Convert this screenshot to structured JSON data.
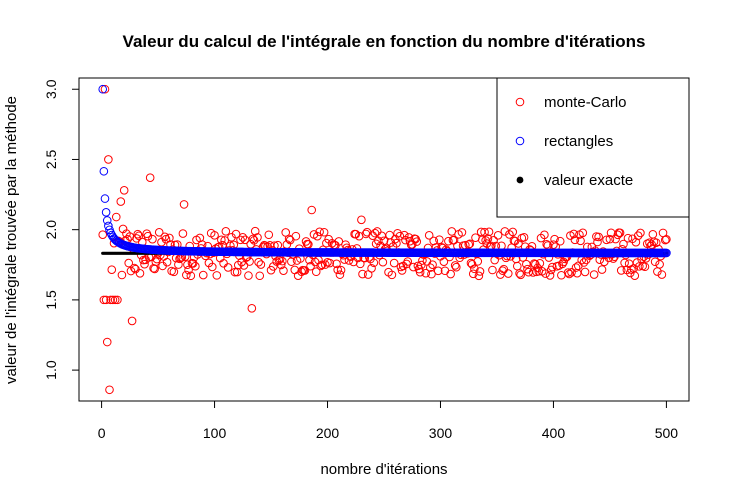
{
  "chart_data": {
    "type": "scatter",
    "title": "Valeur du calcul de l'intégrale en fonction du nombre d'itérations",
    "xlabel": "nombre d'itérations",
    "ylabel": "valeur de l'intégrale trouvée par la méthode",
    "xlim": [
      -20,
      520
    ],
    "ylim": [
      0.78,
      3.08
    ],
    "xticks": [
      0,
      100,
      200,
      300,
      400,
      500
    ],
    "yticks": [
      1.0,
      1.5,
      2.0,
      2.5,
      3.0
    ],
    "xtick_labels": [
      "0",
      "100",
      "200",
      "300",
      "400",
      "500"
    ],
    "ytick_labels": [
      "1.0",
      "1.5",
      "2.0",
      "2.5",
      "3.0"
    ],
    "grid": false,
    "legend_position": "top-right",
    "series": [
      {
        "name": "monte-Carlo",
        "marker": "open-circle",
        "color": "#ff0000",
        "x_start": 1,
        "x_end": 500,
        "center": 1.83,
        "spread": 0.33,
        "highlights": [
          [
            3,
            3.0
          ],
          [
            5,
            1.2
          ],
          [
            6,
            2.5
          ],
          [
            7,
            0.86
          ],
          [
            2,
            1.5
          ],
          [
            4,
            1.5
          ],
          [
            8,
            1.5
          ],
          [
            10,
            1.5
          ],
          [
            12,
            1.5
          ],
          [
            14,
            1.5
          ],
          [
            17,
            2.2
          ],
          [
            20,
            2.28
          ],
          [
            43,
            2.37
          ],
          [
            73,
            2.18
          ],
          [
            133,
            1.44
          ],
          [
            186,
            2.14
          ],
          [
            230,
            2.07
          ],
          [
            27,
            1.35
          ]
        ]
      },
      {
        "name": "rectangles",
        "marker": "open-circle",
        "color": "#0000ff",
        "x_start": 1,
        "x_end": 500,
        "limit": 1.8318,
        "formula": "limit + (3 - limit) / n"
      },
      {
        "name": "valeur exacte",
        "marker": "filled-circle",
        "color": "#000000",
        "x_start": 1,
        "x_end": 500,
        "value": 1.8318
      }
    ]
  },
  "legend": {
    "items": [
      {
        "label": "monte-Carlo",
        "marker": "open-circle",
        "color": "#ff0000"
      },
      {
        "label": "rectangles",
        "marker": "open-circle",
        "color": "#0000ff"
      },
      {
        "label": "valeur exacte",
        "marker": "filled-circle",
        "color": "#000000"
      }
    ]
  }
}
